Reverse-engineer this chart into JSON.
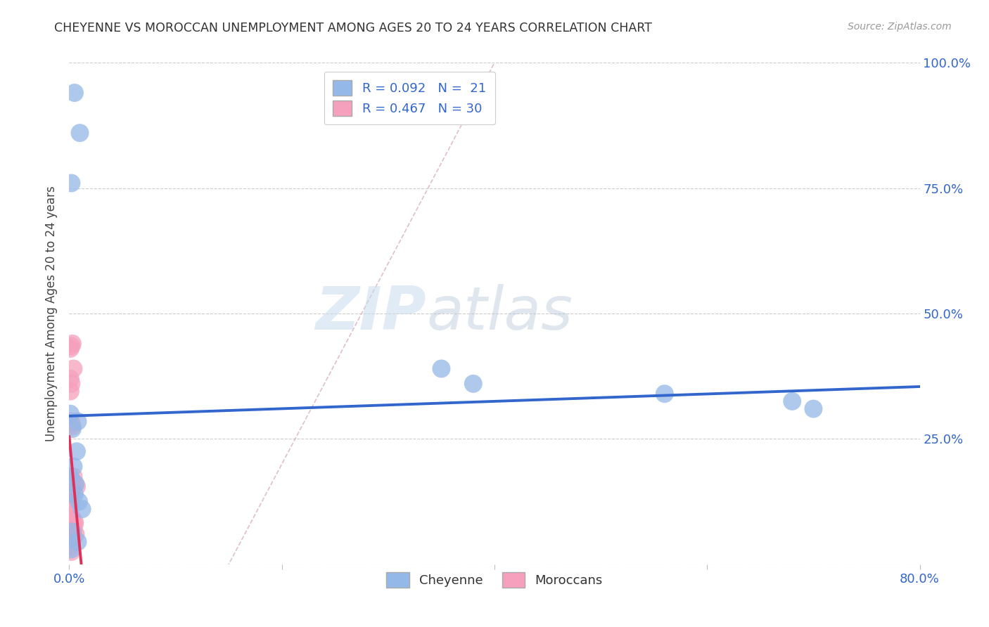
{
  "title": "CHEYENNE VS MOROCCAN UNEMPLOYMENT AMONG AGES 20 TO 24 YEARS CORRELATION CHART",
  "source": "Source: ZipAtlas.com",
  "ylabel": "Unemployment Among Ages 20 to 24 years",
  "xlim": [
    0,
    0.8
  ],
  "ylim": [
    0,
    1.0
  ],
  "xticks": [
    0.0,
    0.2,
    0.4,
    0.6,
    0.8
  ],
  "yticks": [
    0.0,
    0.25,
    0.5,
    0.75,
    1.0
  ],
  "xticklabels": [
    "0.0%",
    "",
    "",
    "",
    "80.0%"
  ],
  "yticklabels": [
    "",
    "25.0%",
    "50.0%",
    "75.0%",
    "100.0%"
  ],
  "legend_R_cheyenne": "R = 0.092",
  "legend_N_cheyenne": "N =  21",
  "legend_R_moroccan": "R = 0.467",
  "legend_N_moroccan": "N = 30",
  "cheyenne_color": "#94B8E8",
  "moroccan_color": "#F5A0BC",
  "cheyenne_line_color": "#3366CC",
  "moroccan_line_color": "#E0305A",
  "ref_line_color": "#DDB8C0",
  "watermark_zip": "ZIP",
  "watermark_atlas": "atlas",
  "background_color": "#FFFFFF",
  "cheyenne_x": [
    0.005,
    0.01,
    0.002,
    0.001,
    0.008,
    0.003,
    0.007,
    0.004,
    0.001,
    0.006,
    0.005,
    0.009,
    0.012,
    0.003,
    0.008,
    0.35,
    0.38,
    0.56,
    0.68,
    0.7,
    0.002
  ],
  "cheyenne_y": [
    0.94,
    0.86,
    0.76,
    0.3,
    0.285,
    0.27,
    0.225,
    0.195,
    0.175,
    0.16,
    0.14,
    0.125,
    0.11,
    0.065,
    0.045,
    0.39,
    0.36,
    0.34,
    0.325,
    0.31,
    0.03
  ],
  "moroccan_x": [
    0.001,
    0.002,
    0.003,
    0.004,
    0.001,
    0.002,
    0.001,
    0.001,
    0.002,
    0.003,
    0.004,
    0.002,
    0.003,
    0.005,
    0.007,
    0.001,
    0.001,
    0.002,
    0.001,
    0.001,
    0.002,
    0.003,
    0.005,
    0.005,
    0.003,
    0.004,
    0.006,
    0.004,
    0.001,
    0.002
  ],
  "moroccan_y": [
    0.43,
    0.435,
    0.44,
    0.39,
    0.37,
    0.36,
    0.345,
    0.285,
    0.28,
    0.275,
    0.175,
    0.17,
    0.165,
    0.16,
    0.155,
    0.15,
    0.145,
    0.14,
    0.13,
    0.12,
    0.095,
    0.09,
    0.085,
    0.08,
    0.075,
    0.07,
    0.06,
    0.055,
    0.035,
    0.025
  ]
}
